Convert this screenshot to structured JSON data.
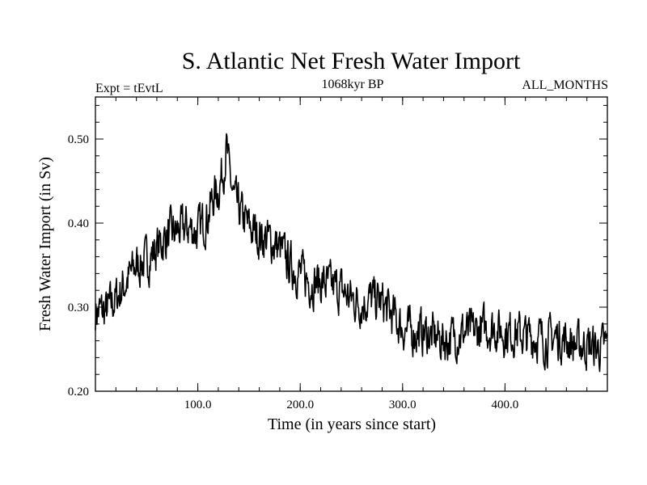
{
  "chart_data": {
    "type": "line",
    "title": "S. Atlantic Net Fresh Water Import",
    "subtitle_left": "Expt = tEvtL",
    "subtitle_center": "1068kyr BP",
    "subtitle_right": "ALL_MONTHS",
    "xlabel": "Time (in years since start)",
    "ylabel": "Fresh Water Import (in Sv)",
    "xlim": [
      0,
      500
    ],
    "ylim": [
      0.2,
      0.55
    ],
    "x_ticks": [
      100,
      200,
      300,
      400
    ],
    "x_tick_labels": [
      "100.0",
      "200.0",
      "300.0",
      "400.0"
    ],
    "y_ticks": [
      0.2,
      0.3,
      0.4,
      0.5
    ],
    "y_tick_labels": [
      "0.20",
      "0.30",
      "0.40",
      "0.50"
    ],
    "series": [
      {
        "name": "S. Atlantic net fresh water import",
        "color": "#000000",
        "x": [
          0,
          10,
          20,
          30,
          40,
          50,
          60,
          70,
          80,
          90,
          100,
          110,
          115,
          120,
          125,
          128,
          130,
          135,
          140,
          150,
          160,
          170,
          180,
          190,
          200,
          210,
          220,
          230,
          240,
          250,
          260,
          270,
          280,
          290,
          300,
          310,
          320,
          330,
          340,
          350,
          360,
          370,
          380,
          390,
          400,
          410,
          420,
          430,
          440,
          450,
          460,
          470,
          480,
          490,
          500
        ],
        "y": [
          0.295,
          0.295,
          0.31,
          0.33,
          0.35,
          0.355,
          0.37,
          0.385,
          0.39,
          0.395,
          0.39,
          0.41,
          0.43,
          0.44,
          0.465,
          0.49,
          0.465,
          0.43,
          0.415,
          0.395,
          0.385,
          0.38,
          0.37,
          0.35,
          0.34,
          0.33,
          0.33,
          0.325,
          0.32,
          0.31,
          0.305,
          0.31,
          0.305,
          0.29,
          0.275,
          0.27,
          0.27,
          0.265,
          0.26,
          0.265,
          0.27,
          0.27,
          0.275,
          0.275,
          0.27,
          0.27,
          0.265,
          0.265,
          0.26,
          0.265,
          0.26,
          0.255,
          0.255,
          0.25,
          0.255
        ]
      }
    ]
  }
}
